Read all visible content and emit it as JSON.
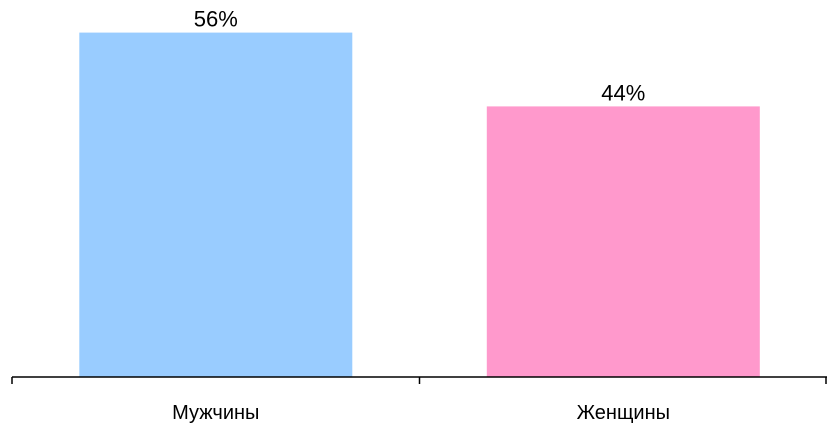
{
  "chart_data": {
    "type": "bar",
    "categories": [
      "Мужчины",
      "Женщины"
    ],
    "values": [
      56,
      44
    ],
    "data_labels": [
      "56%",
      "44%"
    ],
    "colors": [
      "#99ccff",
      "#ff99cc"
    ],
    "ylim": [
      0,
      60
    ],
    "grid": false,
    "legend": "none"
  }
}
